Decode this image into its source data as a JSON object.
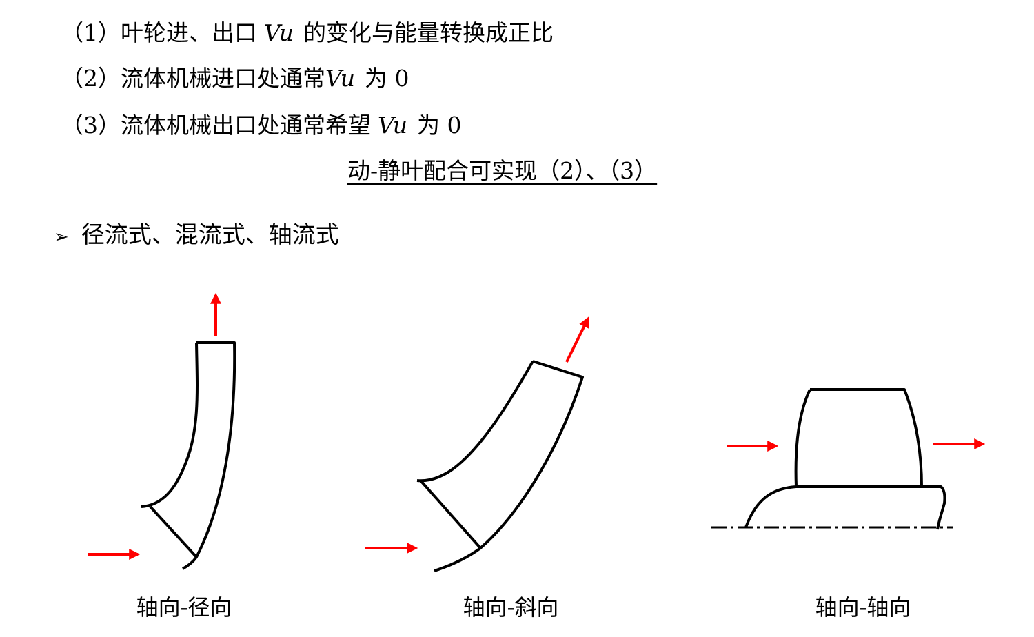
{
  "items": [
    {
      "prefix": "（1）叶轮进、出口",
      "symbol": "Vu",
      "suffix": "的变化与能量转换成正比"
    },
    {
      "prefix": "（2）流体机械进口处通常",
      "symbol": "Vu",
      "suffix": "为 0"
    },
    {
      "prefix": "（3）流体机械出口处通常希望",
      "symbol": "Vu",
      "suffix": "为 0"
    }
  ],
  "conclusion": "动-静叶配合可实现（2）、（3）",
  "bullet": "径流式、混流式、轴流式",
  "diagrams": [
    {
      "caption": "轴向-径向"
    },
    {
      "caption": "轴向-斜向"
    },
    {
      "caption": "轴向-轴向"
    }
  ]
}
